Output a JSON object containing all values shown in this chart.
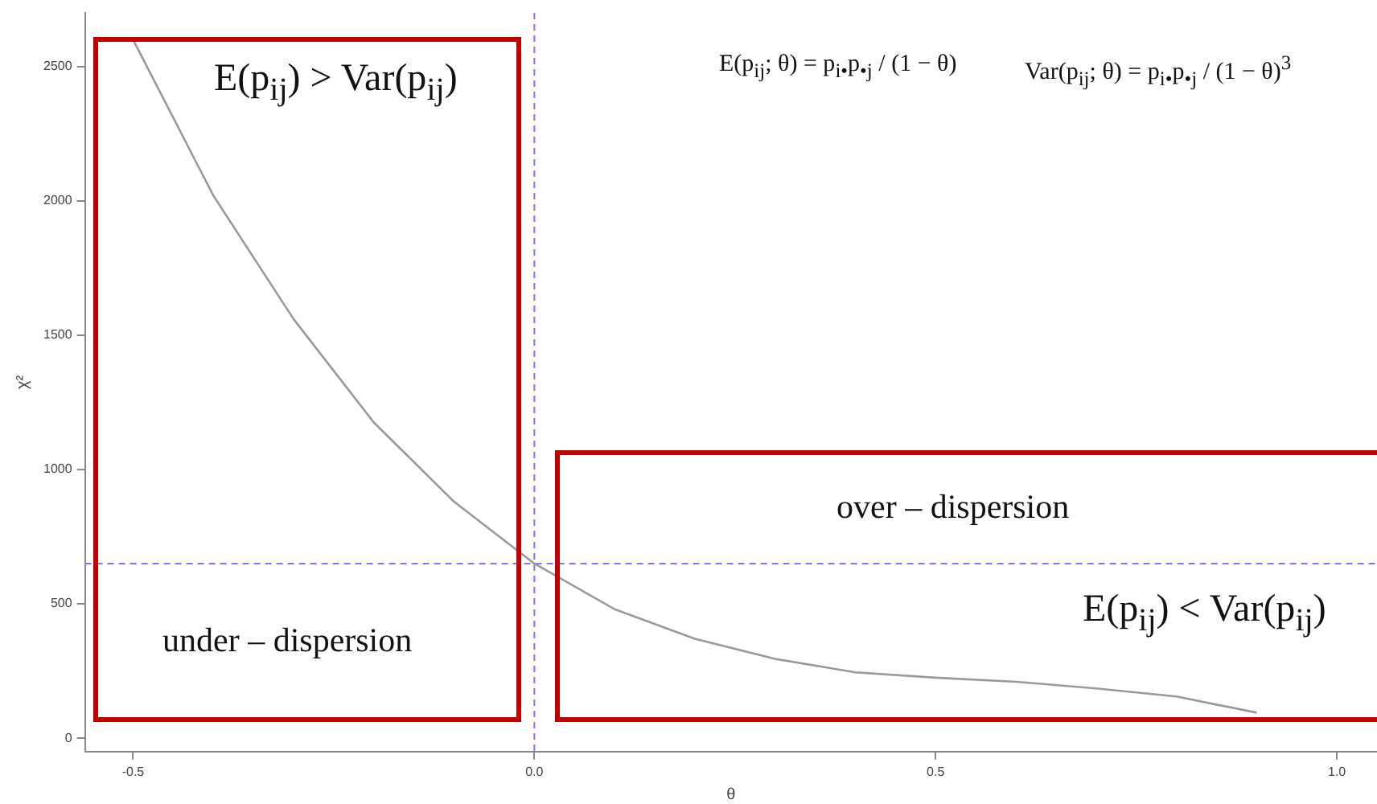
{
  "chart_data": {
    "type": "line",
    "xlabel": "θ",
    "ylabel": "χ²",
    "x": [
      -0.5,
      -0.4,
      -0.3,
      -0.2,
      -0.1,
      0,
      0.1,
      0.2,
      0.3,
      0.4,
      0.5,
      0.6,
      0.7,
      0.8,
      0.9
    ],
    "series": [
      {
        "color": "#999999",
        "values": [
          2600,
          2020,
          1560,
          1175,
          880,
          650,
          480,
          370,
          295,
          245,
          225,
          210,
          185,
          155,
          95
        ]
      }
    ],
    "xlim": [
      -0.56,
      1.05
    ],
    "xticks": [
      {
        "value": -0.5,
        "label": "-0.5"
      },
      {
        "value": 0,
        "label": "0.0"
      },
      {
        "value": 0.5,
        "label": "0.5"
      },
      {
        "value": 1,
        "label": "1.0"
      }
    ],
    "ylim": [
      -50,
      2700
    ],
    "yticks": [
      0,
      500,
      1000,
      1500,
      2000,
      2500
    ],
    "ref_lines": [
      {
        "axis": "x",
        "value": 0,
        "color": "#7777ff",
        "line_style": "dashed"
      },
      {
        "axis": "y",
        "value": 650,
        "color": "#7777ff",
        "line_style": "dashed"
      }
    ],
    "annotations": [
      "E(p$_{ij}$) > Var(p$_{ij}$)",
      "E(p$_{ij}$; θ) = p$_{i•}$p$_{•j}$ / (1 − θ)",
      "Var(p$_{ij}$; θ) = p$_{i•}$p$_{•j}$ / (1 − θ)$^{3}$",
      "over – dispersion",
      "E(p$_{ij}$) < Var(p$_{ij}$)",
      "under – dispersion"
    ],
    "grid": false,
    "legend": false,
    "marker": "none",
    "line_style": "solid"
  }
}
